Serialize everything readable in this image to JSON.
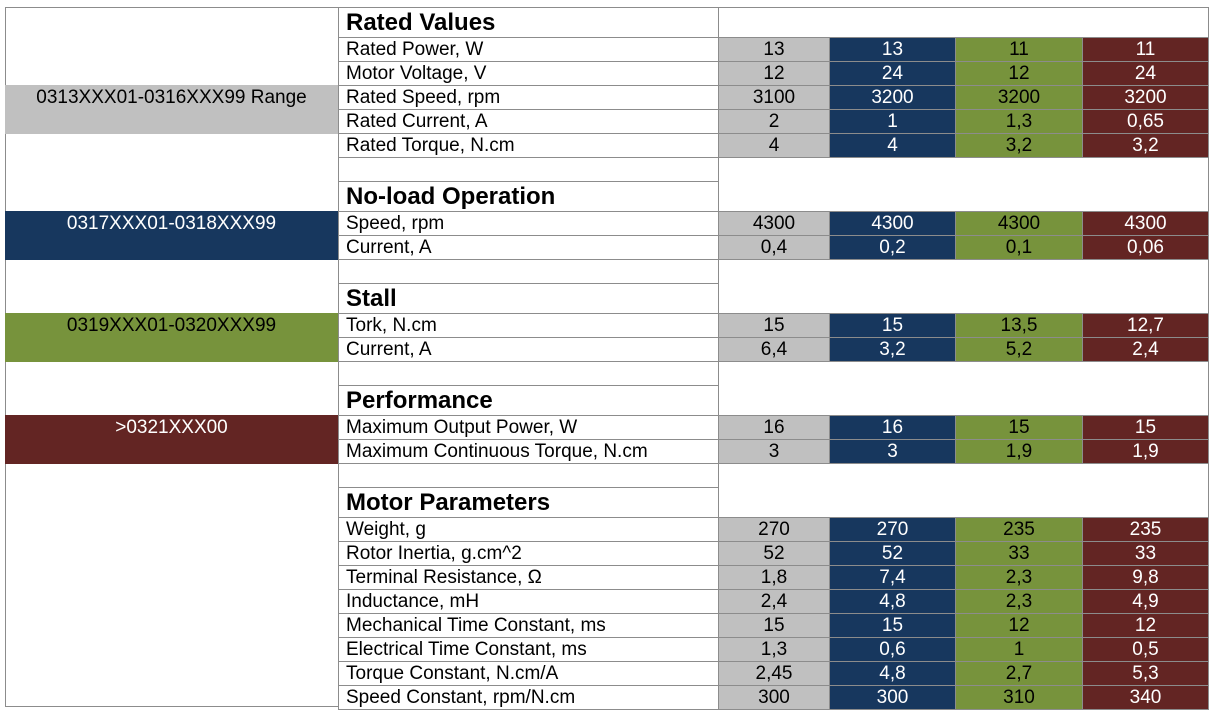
{
  "legend": [
    "0313XXX01-0316XXX99 Range",
    "0317XXX01-0318XXX99",
    "0319XXX01-0320XXX99",
    ">0321XXX00"
  ],
  "sections": [
    {
      "title": "Rated Values",
      "rows": [
        {
          "label": "Rated Power, W",
          "values": [
            "13",
            "13",
            "11",
            "11"
          ]
        },
        {
          "label": "Motor Voltage, V",
          "values": [
            "12",
            "24",
            "12",
            "24"
          ]
        },
        {
          "label": "Rated Speed, rpm",
          "values": [
            "3100",
            "3200",
            "3200",
            "3200"
          ]
        },
        {
          "label": "Rated Current, A",
          "values": [
            "2",
            "1",
            "1,3",
            "0,65"
          ]
        },
        {
          "label": "Rated Torque, N.cm",
          "values": [
            "4",
            "4",
            "3,2",
            "3,2"
          ]
        }
      ]
    },
    {
      "title": "No-load Operation",
      "rows": [
        {
          "label": "Speed, rpm",
          "values": [
            "4300",
            "4300",
            "4300",
            "4300"
          ]
        },
        {
          "label": "Current, A",
          "values": [
            "0,4",
            "0,2",
            "0,1",
            "0,06"
          ]
        }
      ]
    },
    {
      "title": "Stall",
      "rows": [
        {
          "label": "Tork, N.cm",
          "values": [
            "15",
            "15",
            "13,5",
            "12,7"
          ]
        },
        {
          "label": "Current, A",
          "values": [
            "6,4",
            "3,2",
            "5,2",
            "2,4"
          ]
        }
      ]
    },
    {
      "title": "Performance",
      "rows": [
        {
          "label": "Maximum Output Power, W",
          "values": [
            "16",
            "16",
            "15",
            "15"
          ]
        },
        {
          "label": "Maximum Continuous Torque, N.cm",
          "values": [
            "3",
            "3",
            "1,9",
            "1,9"
          ]
        }
      ]
    },
    {
      "title": "Motor Parameters",
      "rows": [
        {
          "label": "Weight, g",
          "values": [
            "270",
            "270",
            "235",
            "235"
          ]
        },
        {
          "label": "Rotor Inertia, g.cm^2",
          "values": [
            "52",
            "52",
            "33",
            "33"
          ]
        },
        {
          "label": "Terminal Resistance, Ω",
          "values": [
            "1,8",
            "7,4",
            "2,3",
            "9,8"
          ]
        },
        {
          "label": "Inductance, mH",
          "values": [
            "2,4",
            "4,8",
            "2,3",
            "4,9"
          ]
        },
        {
          "label": "Mechanical Time Constant, ms",
          "values": [
            "15",
            "15",
            "12",
            "12"
          ]
        },
        {
          "label": "Electrical Time Constant, ms",
          "values": [
            "1,3",
            "0,6",
            "1",
            "0,5"
          ]
        },
        {
          "label": "Torque Constant, N.cm/A",
          "values": [
            "2,45",
            "4,8",
            "2,7",
            "5,3"
          ]
        },
        {
          "label": "Speed Constant, rpm/N.cm",
          "values": [
            "300",
            "300",
            "310",
            "340"
          ]
        }
      ]
    }
  ]
}
